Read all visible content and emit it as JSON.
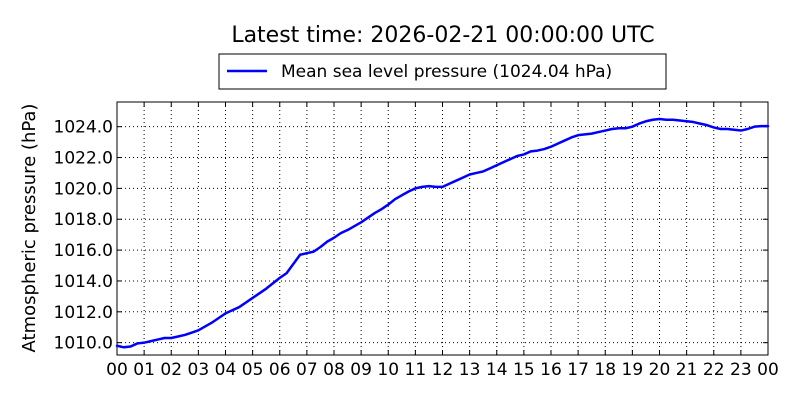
{
  "chart_data": {
    "type": "line",
    "title": "Latest time: 2026-02-21 00:00:00 UTC",
    "xlabel": "",
    "ylabel": "Atmospheric pressure (hPa)",
    "xlim": [
      0,
      24
    ],
    "ylim": [
      1009.2,
      1025.6
    ],
    "x_ticks": [
      0,
      1,
      2,
      3,
      4,
      5,
      6,
      7,
      8,
      9,
      10,
      11,
      12,
      13,
      14,
      15,
      16,
      17,
      18,
      19,
      20,
      21,
      22,
      23,
      24
    ],
    "x_tick_labels": [
      "00",
      "01",
      "02",
      "03",
      "04",
      "05",
      "06",
      "07",
      "08",
      "09",
      "10",
      "11",
      "12",
      "13",
      "14",
      "15",
      "16",
      "17",
      "18",
      "19",
      "20",
      "21",
      "22",
      "23",
      "00"
    ],
    "y_ticks": [
      1010.0,
      1012.0,
      1014.0,
      1016.0,
      1018.0,
      1020.0,
      1022.0,
      1024.0
    ],
    "y_tick_labels": [
      "1010.0",
      "1012.0",
      "1014.0",
      "1016.0",
      "1018.0",
      "1020.0",
      "1022.0",
      "1024.0"
    ],
    "grid": true,
    "legend_position": "top-center, above plot",
    "series": [
      {
        "name": "Mean sea level pressure (1024.04 hPa)",
        "color": "#0000ff",
        "x": [
          0,
          0.25,
          0.5,
          0.75,
          1,
          1.25,
          1.5,
          1.75,
          2,
          2.25,
          2.5,
          2.75,
          3,
          3.25,
          3.5,
          3.75,
          4,
          4.25,
          4.5,
          4.75,
          5,
          5.25,
          5.5,
          5.75,
          6,
          6.25,
          6.5,
          6.75,
          7,
          7.25,
          7.5,
          7.75,
          8,
          8.25,
          8.5,
          8.75,
          9,
          9.25,
          9.5,
          9.75,
          10,
          10.25,
          10.5,
          10.75,
          11,
          11.25,
          11.5,
          11.75,
          12,
          12.25,
          12.5,
          12.75,
          13,
          13.25,
          13.5,
          13.75,
          14,
          14.25,
          14.5,
          14.75,
          15,
          15.25,
          15.5,
          15.75,
          16,
          16.25,
          16.5,
          16.75,
          17,
          17.25,
          17.5,
          17.75,
          18,
          18.25,
          18.5,
          18.75,
          19,
          19.25,
          19.5,
          19.75,
          20,
          20.25,
          20.5,
          20.75,
          21,
          21.25,
          21.5,
          21.75,
          22,
          22.25,
          22.5,
          22.75,
          23,
          23.25,
          23.5,
          23.75,
          24
        ],
        "y": [
          1009.8,
          1009.7,
          1009.75,
          1009.95,
          1010.0,
          1010.1,
          1010.2,
          1010.3,
          1010.3,
          1010.4,
          1010.5,
          1010.65,
          1010.8,
          1011.05,
          1011.3,
          1011.6,
          1011.9,
          1012.1,
          1012.3,
          1012.6,
          1012.9,
          1013.2,
          1013.5,
          1013.85,
          1014.2,
          1014.5,
          1015.1,
          1015.7,
          1015.8,
          1015.9,
          1016.2,
          1016.55,
          1016.8,
          1017.1,
          1017.3,
          1017.55,
          1017.8,
          1018.1,
          1018.4,
          1018.65,
          1018.95,
          1019.3,
          1019.55,
          1019.8,
          1020.0,
          1020.1,
          1020.15,
          1020.1,
          1020.1,
          1020.3,
          1020.5,
          1020.7,
          1020.9,
          1021.0,
          1021.1,
          1021.3,
          1021.5,
          1021.7,
          1021.9,
          1022.1,
          1022.2,
          1022.4,
          1022.45,
          1022.55,
          1022.7,
          1022.9,
          1023.1,
          1023.3,
          1023.45,
          1023.5,
          1023.55,
          1023.65,
          1023.75,
          1023.85,
          1023.9,
          1023.9,
          1024.0,
          1024.2,
          1024.35,
          1024.45,
          1024.5,
          1024.45,
          1024.45,
          1024.4,
          1024.35,
          1024.3,
          1024.2,
          1024.1,
          1023.95,
          1023.85,
          1023.85,
          1023.8,
          1023.75,
          1023.85,
          1024.0,
          1024.04,
          1024.04
        ]
      }
    ]
  }
}
